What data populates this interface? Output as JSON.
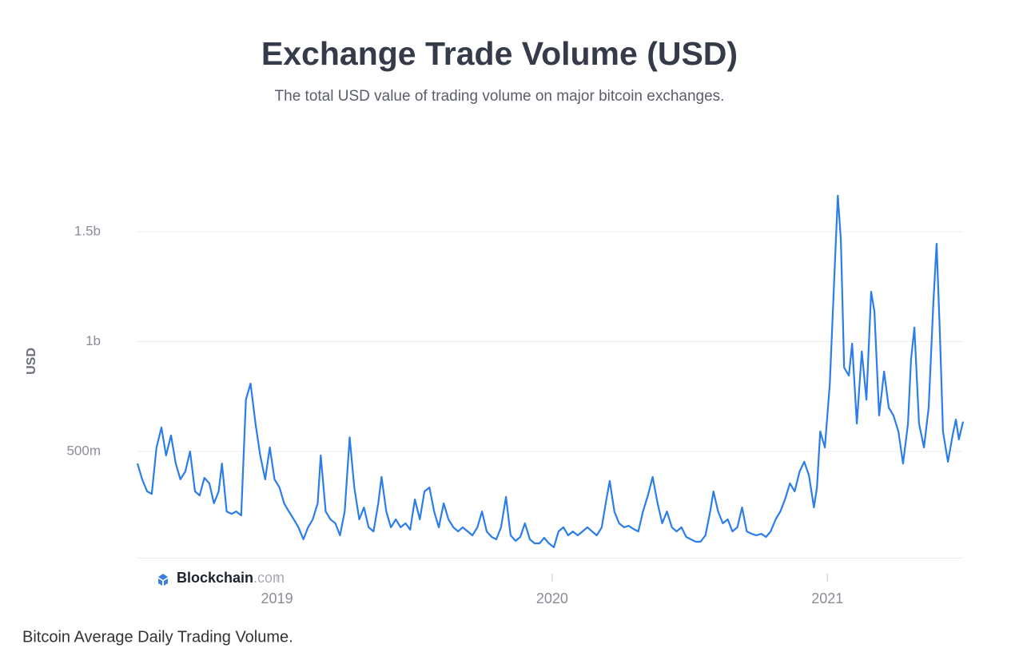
{
  "chart_data": {
    "type": "line",
    "title": "Exchange Trade Volume (USD)",
    "subtitle": "The total USD value of trading volume on major bitcoin exchanges.",
    "y_label": "USD",
    "logo": {
      "brand": "Blockchain",
      "suffix": ".com"
    },
    "xlim": [
      2018.493,
      2021.493
    ],
    "xticks": [
      2019,
      2020,
      2021
    ],
    "ylim": [
      0,
      1800000000.0
    ],
    "yticks": [
      {
        "value": 500000000.0,
        "label": "500m"
      },
      {
        "value": 1000000000.0,
        "label": "1b"
      },
      {
        "value": 1500000000.0,
        "label": "1.5b"
      }
    ],
    "grid": true,
    "x": [
      2018.493,
      2018.51,
      2018.528,
      2018.545,
      2018.562,
      2018.58,
      2018.597,
      2018.615,
      2018.632,
      2018.649,
      2018.667,
      2018.684,
      2018.702,
      2018.719,
      2018.736,
      2018.754,
      2018.771,
      2018.788,
      2018.8,
      2018.817,
      2018.835,
      2018.852,
      2018.87,
      2018.887,
      2018.904,
      2018.922,
      2018.939,
      2018.957,
      2018.974,
      2018.991,
      2019.009,
      2019.026,
      2019.043,
      2019.061,
      2019.078,
      2019.096,
      2019.113,
      2019.13,
      2019.148,
      2019.159,
      2019.177,
      2019.194,
      2019.212,
      2019.229,
      2019.246,
      2019.264,
      2019.281,
      2019.299,
      2019.316,
      2019.333,
      2019.351,
      2019.368,
      2019.38,
      2019.397,
      2019.414,
      2019.432,
      2019.449,
      2019.467,
      2019.484,
      2019.501,
      2019.519,
      2019.536,
      2019.554,
      2019.571,
      2019.588,
      2019.606,
      2019.623,
      2019.641,
      2019.658,
      2019.675,
      2019.693,
      2019.71,
      2019.728,
      2019.745,
      2019.762,
      2019.78,
      2019.797,
      2019.814,
      2019.832,
      2019.849,
      2019.867,
      2019.884,
      2019.901,
      2019.919,
      2019.936,
      2019.954,
      2019.971,
      2019.988,
      2020.006,
      2020.023,
      2020.041,
      2020.058,
      2020.075,
      2020.093,
      2020.11,
      2020.128,
      2020.145,
      2020.162,
      2020.18,
      2020.197,
      2020.209,
      2020.226,
      2020.243,
      2020.261,
      2020.278,
      2020.296,
      2020.313,
      2020.33,
      2020.348,
      2020.365,
      2020.383,
      2020.4,
      2020.417,
      2020.435,
      2020.452,
      2020.47,
      2020.487,
      2020.504,
      2020.522,
      2020.539,
      2020.557,
      2020.574,
      2020.586,
      2020.603,
      2020.62,
      2020.638,
      2020.655,
      2020.673,
      2020.69,
      2020.707,
      2020.725,
      2020.742,
      2020.76,
      2020.777,
      2020.794,
      2020.812,
      2020.829,
      2020.846,
      2020.864,
      2020.881,
      2020.899,
      2020.916,
      2020.933,
      2020.951,
      2020.962,
      2020.974,
      2020.991,
      2021.009,
      2021.026,
      2021.038,
      2021.049,
      2021.061,
      2021.078,
      2021.09,
      2021.107,
      2021.125,
      2021.142,
      2021.159,
      2021.171,
      2021.188,
      2021.206,
      2021.223,
      2021.24,
      2021.258,
      2021.275,
      2021.293,
      2021.304,
      2021.316,
      2021.333,
      2021.351,
      2021.368,
      2021.385,
      2021.397,
      2021.409,
      2021.42,
      2021.438,
      2021.455,
      2021.467,
      2021.478,
      2021.493
    ],
    "series": [
      {
        "color": "#2b7de9",
        "values": [
          445000000.0,
          373000000.0,
          318000000.0,
          307000000.0,
          518000000.0,
          609000000.0,
          482000000.0,
          573000000.0,
          445000000.0,
          373000000.0,
          409000000.0,
          500000000.0,
          318000000.0,
          300000000.0,
          380000000.0,
          355000000.0,
          264000000.0,
          318000000.0,
          445000000.0,
          227000000.0,
          216000000.0,
          227000000.0,
          209000000.0,
          736000000.0,
          809000000.0,
          627000000.0,
          482000000.0,
          373000000.0,
          518000000.0,
          373000000.0,
          336000000.0,
          264000000.0,
          227000000.0,
          191000000.0,
          155000000.0,
          100000000.0,
          155000000.0,
          191000000.0,
          264000000.0,
          482000000.0,
          227000000.0,
          191000000.0,
          173000000.0,
          118000000.0,
          227000000.0,
          564000000.0,
          336000000.0,
          191000000.0,
          245000000.0,
          155000000.0,
          136000000.0,
          264000000.0,
          384000000.0,
          227000000.0,
          155000000.0,
          191000000.0,
          155000000.0,
          173000000.0,
          144000000.0,
          282000000.0,
          191000000.0,
          318000000.0,
          336000000.0,
          227000000.0,
          155000000.0,
          264000000.0,
          191000000.0,
          155000000.0,
          136000000.0,
          155000000.0,
          136000000.0,
          118000000.0,
          155000000.0,
          227000000.0,
          136000000.0,
          111000000.0,
          100000000.0,
          155000000.0,
          293000000.0,
          118000000.0,
          93000000.0,
          111000000.0,
          173000000.0,
          100000000.0,
          82000000.0,
          82000000.0,
          107000000.0,
          82000000.0,
          64000000.0,
          136000000.0,
          155000000.0,
          118000000.0,
          136000000.0,
          118000000.0,
          136000000.0,
          155000000.0,
          136000000.0,
          118000000.0,
          155000000.0,
          282000000.0,
          366000000.0,
          227000000.0,
          173000000.0,
          155000000.0,
          162000000.0,
          147000000.0,
          136000000.0,
          227000000.0,
          300000000.0,
          384000000.0,
          264000000.0,
          173000000.0,
          227000000.0,
          155000000.0,
          136000000.0,
          155000000.0,
          111000000.0,
          100000000.0,
          89000000.0,
          89000000.0,
          118000000.0,
          227000000.0,
          318000000.0,
          227000000.0,
          173000000.0,
          191000000.0,
          136000000.0,
          155000000.0,
          245000000.0,
          136000000.0,
          125000000.0,
          118000000.0,
          125000000.0,
          111000000.0,
          136000000.0,
          191000000.0,
          227000000.0,
          282000000.0,
          355000000.0,
          318000000.0,
          409000000.0,
          453000000.0,
          391000000.0,
          245000000.0,
          336000000.0,
          591000000.0,
          518000000.0,
          809000000.0,
          1318000000.0,
          1664000000.0,
          1464000000.0,
          882000000.0,
          845000000.0,
          991000000.0,
          627000000.0,
          955000000.0,
          736000000.0,
          1227000000.0,
          1136000000.0,
          664000000.0,
          864000000.0,
          700000000.0,
          664000000.0,
          591000000.0,
          445000000.0,
          627000000.0,
          918000000.0,
          1064000000.0,
          627000000.0,
          518000000.0,
          700000000.0,
          1173000000.0,
          1445000000.0,
          1027000000.0,
          591000000.0,
          453000000.0,
          573000000.0,
          645000000.0,
          555000000.0,
          636000000.0
        ]
      }
    ]
  },
  "caption": "Bitcoin Average Daily Trading Volume."
}
